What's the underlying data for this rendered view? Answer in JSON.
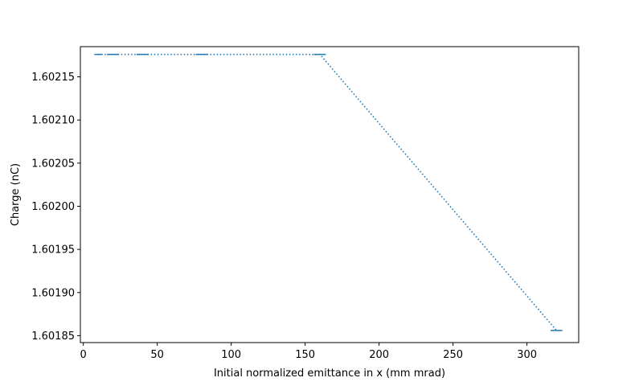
{
  "chart_data": {
    "type": "line",
    "title": "",
    "xlabel": "Initial normalized emittance in x (mm mrad)",
    "ylabel": "Charge (nC)",
    "xlim": [
      -2,
      335
    ],
    "ylim": [
      1.601842,
      1.602185
    ],
    "x_ticks": [
      0,
      50,
      100,
      150,
      200,
      250,
      300
    ],
    "x_tick_labels": [
      "0",
      "50",
      "100",
      "150",
      "200",
      "250",
      "300"
    ],
    "y_ticks": [
      1.60185,
      1.6019,
      1.60195,
      1.602,
      1.60205,
      1.6021,
      1.60215
    ],
    "y_tick_labels": [
      "1.60185",
      "1.60190",
      "1.60195",
      "1.60200",
      "1.60205",
      "1.60210",
      "1.60215"
    ],
    "grid": false,
    "series": [
      {
        "line_style": "dotted",
        "color": "#1f77b4",
        "x": [
          10,
          20,
          40,
          80,
          160,
          320
        ],
        "y": [
          1.602176,
          1.602176,
          1.602176,
          1.602176,
          1.602176,
          1.601856
        ],
        "xerr": [
          2.5,
          4,
          4,
          4,
          4,
          4
        ]
      }
    ]
  }
}
